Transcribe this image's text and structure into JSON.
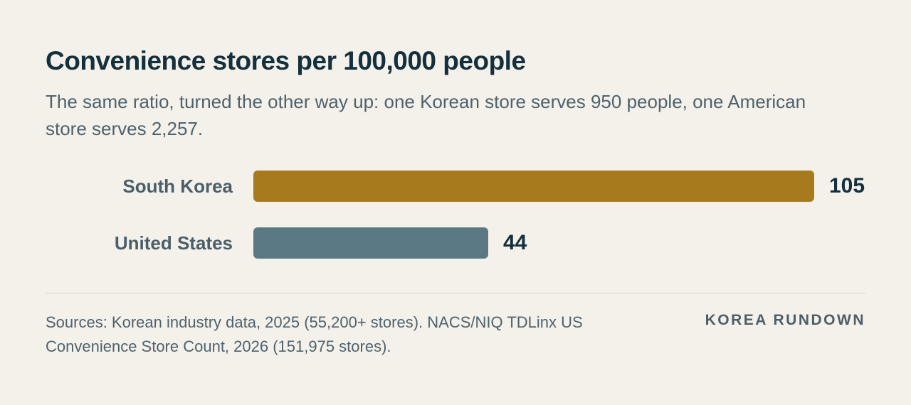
{
  "header": {
    "title": "Convenience stores per 100,000 people",
    "subtitle": "The same ratio, turned the other way up: one Korean store serves 950 people, one American store serves 2,257."
  },
  "chart_data": {
    "type": "bar",
    "orientation": "horizontal",
    "categories": [
      "South Korea",
      "United States"
    ],
    "values": [
      105,
      44
    ],
    "value_labels": [
      "105",
      "44"
    ],
    "colors": [
      "#a87a1e",
      "#5b7985"
    ],
    "xlim": [
      0,
      105
    ],
    "grid": false,
    "legend": "none"
  },
  "footer": {
    "source": "Sources: Korean industry data, 2025 (55,200+ stores). NACS/NIQ TDLinx US Convenience Store Count, 2026 (151,975 stores).",
    "brand": "KOREA RUNDOWN"
  }
}
